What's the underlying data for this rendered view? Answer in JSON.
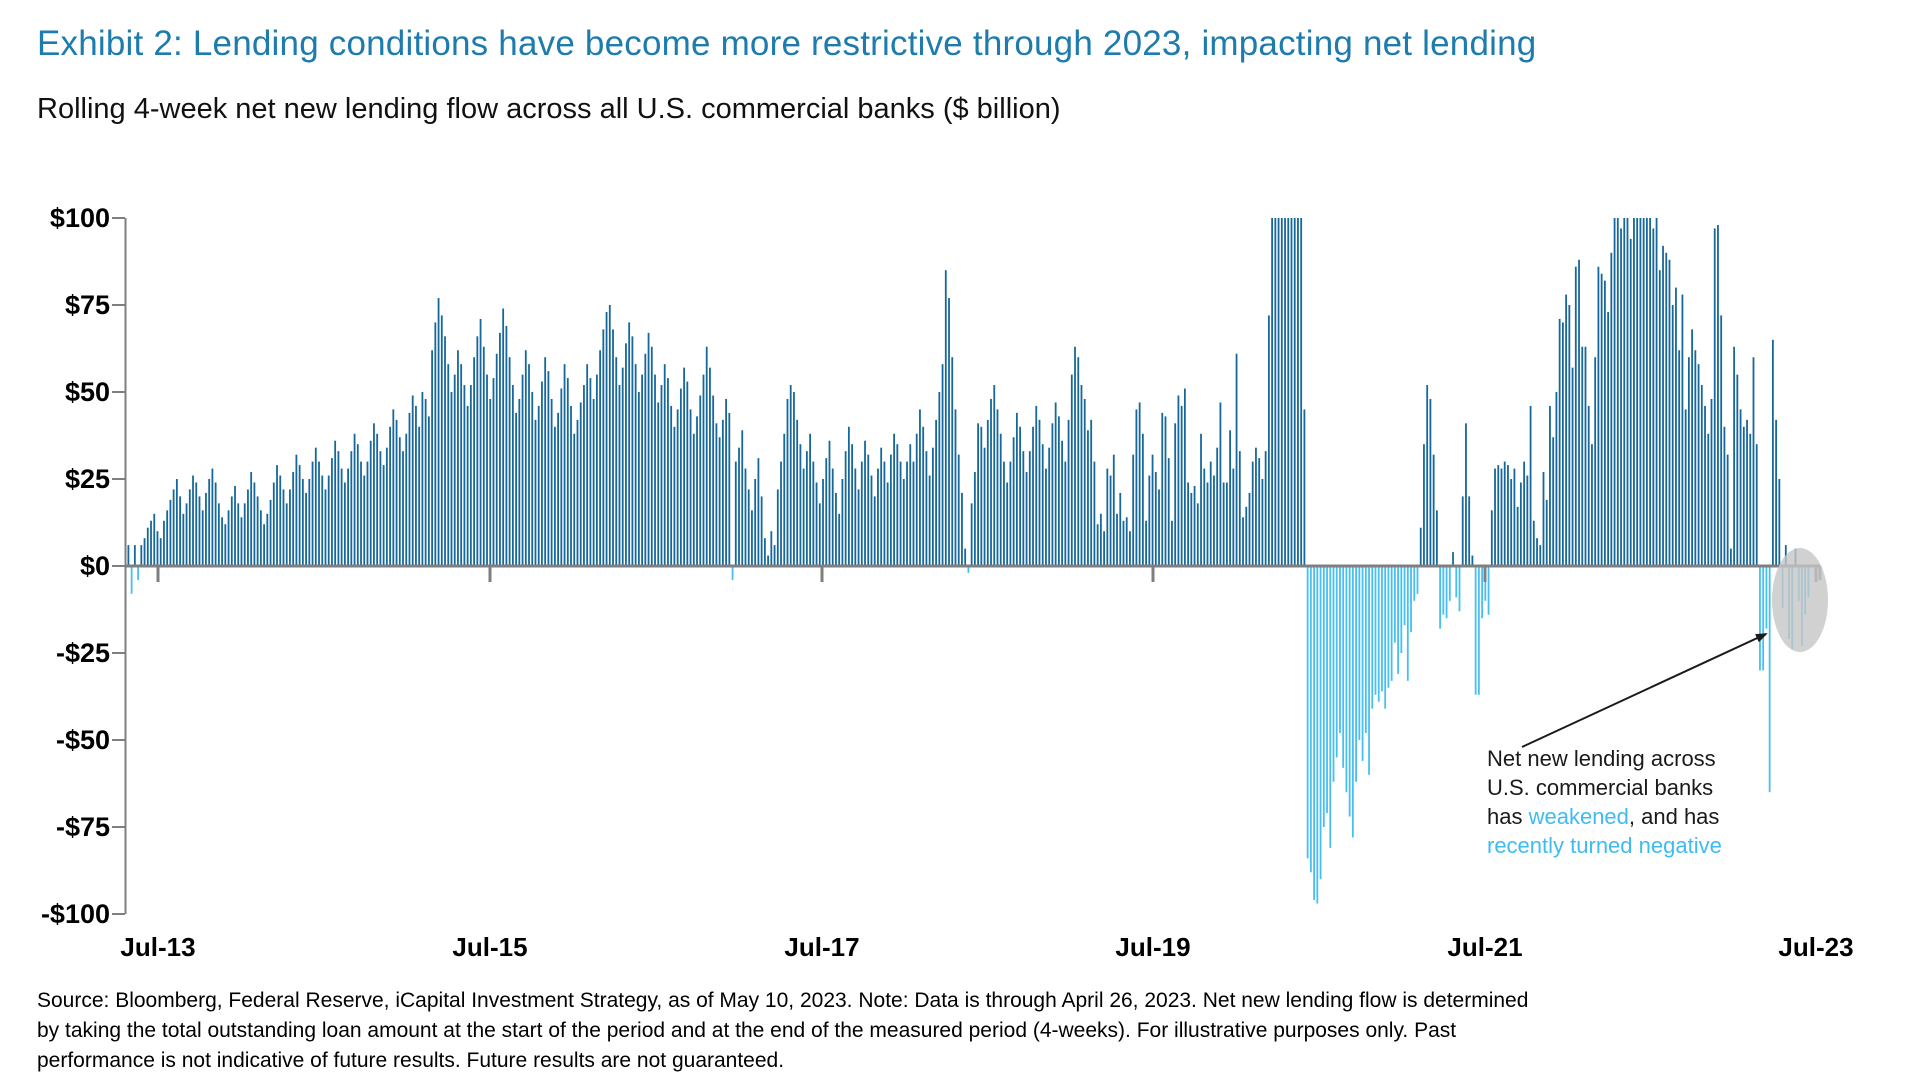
{
  "title": "Exhibit 2: Lending conditions have become more restrictive through 2023, impacting net lending",
  "subtitle": "Rolling 4-week net new lending flow across all U.S. commercial banks ($ billion)",
  "source_note": "Source: Bloomberg, Federal Reserve, iCapital Investment Strategy, as of May 10, 2023. Note: Data is through April 26, 2023. Net new lending flow is determined by taking the total outstanding loan amount at the start of the period and at the end of the measured period (4-weeks). For illustrative purposes only. Past performance is not indicative of future results. Future results are not guaranteed.",
  "annotation": {
    "part1": "Net new lending across U.S. commercial banks has ",
    "highlight1": "weakened",
    "part2": ", and has ",
    "highlight2": "recently turned negative"
  },
  "colors": {
    "title_blue": "#1D7CAD",
    "positive_bar": "#16689A",
    "negative_bar": "#47BFF0",
    "axis_gray": "#7F7F7F",
    "highlight_text": "#3EBCF2",
    "highlight_ellipse": "#C6C6C6",
    "arrow_black": "#1a1a1a"
  },
  "chart_data": {
    "type": "bar",
    "title": "Rolling 4-week net new lending flow across all U.S. commercial banks ($ billion)",
    "xlabel": "",
    "ylabel": "$ billion",
    "frequency": "weekly",
    "x_start": "May-2013",
    "x_end": "Apr-2023",
    "ylim": [
      -100,
      100
    ],
    "grid": false,
    "x_tick_labels": [
      "Jul-13",
      "Jul-15",
      "Jul-17",
      "Jul-19",
      "Jul-21",
      "Jul-23"
    ],
    "y_tick_labels": [
      "$100",
      "$75",
      "$50",
      "$25",
      "$0",
      "-$25",
      "-$50",
      "-$75",
      "-$100"
    ],
    "y_tick_values": [
      100,
      75,
      50,
      25,
      0,
      -25,
      -50,
      -75,
      -100
    ],
    "values": [
      6,
      -8,
      6,
      -4,
      6,
      8,
      11,
      13,
      15,
      10,
      8,
      13,
      16,
      19,
      22,
      25,
      20,
      15,
      18,
      22,
      26,
      24,
      20,
      16,
      21,
      25,
      28,
      24,
      18,
      14,
      12,
      16,
      20,
      23,
      18,
      14,
      18,
      22,
      27,
      24,
      20,
      16,
      12,
      15,
      19,
      24,
      29,
      26,
      22,
      18,
      22,
      27,
      32,
      29,
      25,
      21,
      25,
      30,
      34,
      30,
      26,
      22,
      26,
      31,
      36,
      33,
      28,
      24,
      28,
      33,
      38,
      35,
      30,
      26,
      30,
      36,
      41,
      38,
      33,
      29,
      34,
      40,
      45,
      42,
      37,
      33,
      38,
      44,
      49,
      46,
      40,
      50,
      48,
      43,
      62,
      70,
      77,
      72,
      66,
      58,
      50,
      55,
      62,
      58,
      52,
      46,
      52,
      60,
      66,
      71,
      63,
      55,
      48,
      54,
      61,
      67,
      74,
      69,
      60,
      52,
      44,
      48,
      55,
      62,
      58,
      50,
      42,
      46,
      53,
      60,
      56,
      48,
      40,
      44,
      51,
      58,
      54,
      46,
      38,
      42,
      47,
      52,
      58,
      54,
      48,
      55,
      62,
      68,
      73,
      75,
      68,
      60,
      52,
      57,
      64,
      70,
      66,
      58,
      50,
      55,
      61,
      67,
      63,
      55,
      47,
      52,
      58,
      54,
      46,
      40,
      45,
      51,
      57,
      53,
      45,
      38,
      43,
      49,
      55,
      63,
      57,
      49,
      41,
      37,
      42,
      48,
      44,
      -4,
      30,
      34,
      39,
      28,
      22,
      16,
      25,
      31,
      20,
      8,
      3,
      10,
      6,
      22,
      30,
      38,
      48,
      52,
      50,
      42,
      35,
      28,
      33,
      38,
      30,
      24,
      18,
      25,
      31,
      36,
      28,
      21,
      15,
      25,
      33,
      40,
      35,
      28,
      22,
      30,
      36,
      32,
      26,
      20,
      28,
      34,
      30,
      24,
      32,
      38,
      35,
      30,
      25,
      30,
      35,
      30,
      38,
      45,
      40,
      33,
      26,
      34,
      42,
      50,
      58,
      85,
      77,
      60,
      45,
      32,
      21,
      5,
      -2,
      18,
      27,
      41,
      40,
      34,
      42,
      48,
      52,
      45,
      38,
      30,
      24,
      30,
      37,
      44,
      40,
      33,
      27,
      33,
      40,
      46,
      42,
      35,
      28,
      34,
      41,
      47,
      43,
      36,
      30,
      42,
      55,
      63,
      60,
      52,
      48,
      39,
      42,
      30,
      12,
      15,
      10,
      28,
      26,
      32,
      15,
      21,
      13,
      14,
      10,
      32,
      45,
      47,
      38,
      13,
      26,
      32,
      27,
      22,
      44,
      43,
      31,
      13,
      41,
      49,
      46,
      51,
      24,
      21,
      23,
      18,
      38,
      28,
      24,
      30,
      26,
      34,
      47,
      24,
      24,
      39,
      28,
      61,
      33,
      14,
      17,
      21,
      30,
      34,
      31,
      25,
      33,
      72,
      100,
      100,
      100,
      100,
      100,
      100,
      100,
      100,
      100,
      100,
      45,
      -84,
      -88,
      -96,
      -97,
      -90,
      -75,
      -71,
      -81,
      -62,
      -55,
      -48,
      -58,
      -65,
      -72,
      -78,
      -62,
      -50,
      -56,
      -48,
      -60,
      -41,
      -37,
      -39,
      -36,
      -41,
      -35,
      -33,
      -22,
      -31,
      -25,
      -17,
      -33,
      -19,
      -10,
      -8,
      11,
      35,
      52,
      48,
      32,
      16,
      -18,
      -14,
      -15,
      -10,
      4,
      -9,
      -13,
      20,
      41,
      20,
      3,
      -37,
      -37,
      -15,
      -10,
      -14,
      16,
      28,
      29,
      28,
      30,
      29,
      25,
      28,
      17,
      24,
      30,
      26,
      46,
      13,
      8,
      6,
      27,
      19,
      46,
      37,
      50,
      71,
      70,
      78,
      75,
      57,
      86,
      88,
      63,
      63,
      46,
      35,
      60,
      86,
      84,
      82,
      73,
      90,
      100,
      100,
      97,
      100,
      100,
      94,
      100,
      100,
      100,
      100,
      100,
      100,
      97,
      100,
      85,
      92,
      90,
      88,
      75,
      80,
      62,
      78,
      45,
      60,
      68,
      62,
      58,
      52,
      46,
      38,
      48,
      97,
      98,
      72,
      40,
      32,
      5,
      63,
      55,
      45,
      40,
      42,
      38,
      60,
      35,
      -30,
      -30,
      -18,
      -65,
      65,
      42,
      25,
      -12,
      6,
      -21,
      -24,
      5,
      -10,
      -23,
      -14,
      -9
    ],
    "annotations": [
      {
        "text": "Net new lending across U.S. commercial banks has weakened, and has recently turned negative",
        "target": "last weeks of series circled, negative values"
      }
    ],
    "legend_position": "none"
  }
}
